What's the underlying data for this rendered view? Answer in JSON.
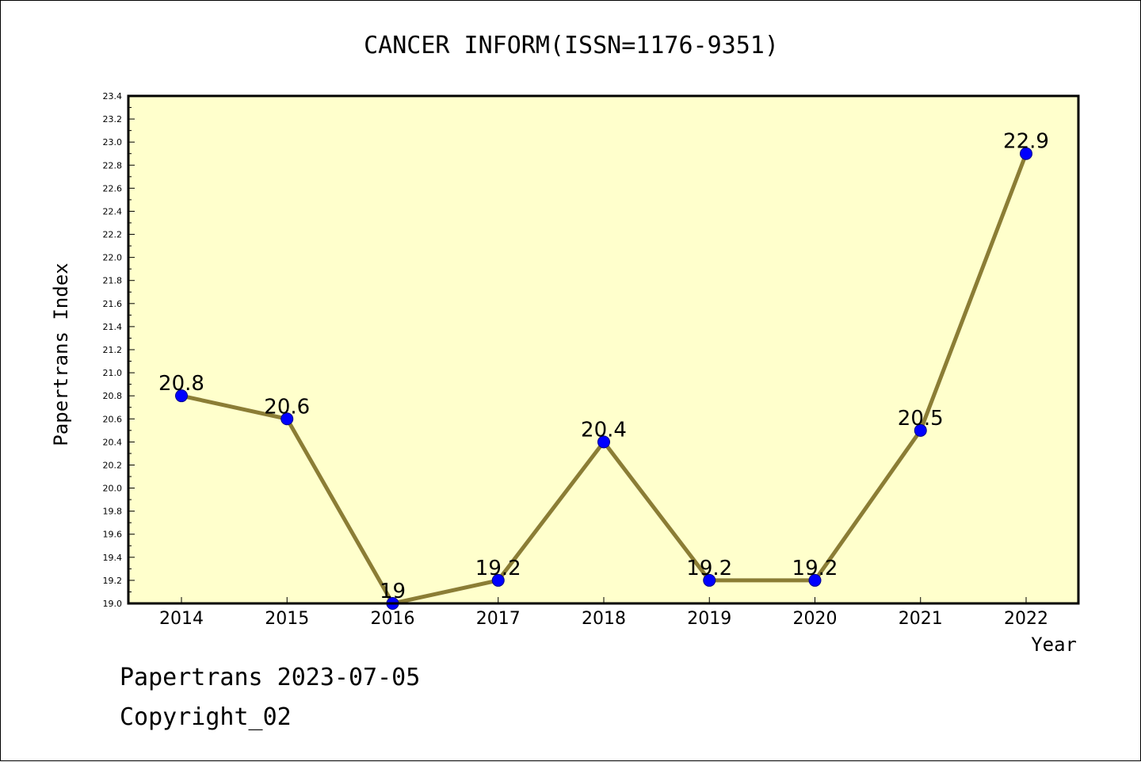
{
  "chart_data": {
    "type": "line",
    "title": "CANCER INFORM(ISSN=1176-9351)",
    "xlabel": "Year",
    "ylabel": "Papertrans Index",
    "categories": [
      "2014",
      "2015",
      "2016",
      "2017",
      "2018",
      "2019",
      "2020",
      "2021",
      "2022"
    ],
    "values": [
      20.8,
      20.6,
      19,
      19.2,
      20.4,
      19.2,
      19.2,
      20.5,
      22.9
    ],
    "data_labels": [
      "20.8",
      "20.6",
      "19",
      "19.2",
      "20.4",
      "19.2",
      "19.2",
      "20.5",
      "22.9"
    ],
    "ylim": [
      19.0,
      23.4
    ],
    "yticks": [
      "19.0",
      "19.2",
      "19.4",
      "19.6",
      "19.8",
      "20.0",
      "20.2",
      "20.4",
      "20.6",
      "20.8",
      "21.0",
      "21.2",
      "21.4",
      "21.6",
      "21.8",
      "22.0",
      "22.2",
      "22.4",
      "22.6",
      "22.8",
      "23.0",
      "23.2",
      "23.4"
    ],
    "grid": false,
    "colors": {
      "plot_background": "#ffffcc",
      "line": "#8b7d35",
      "marker": "#0000ff"
    }
  },
  "footer": {
    "line1": "Papertrans 2023-07-05",
    "line2": "Copyright_02"
  }
}
